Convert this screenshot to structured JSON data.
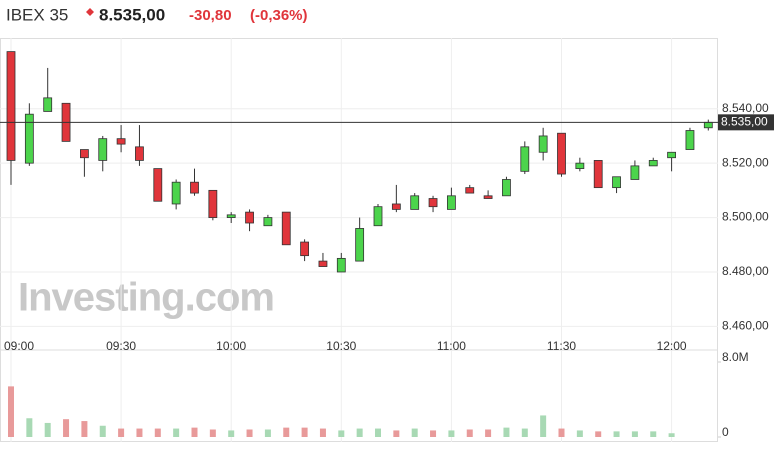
{
  "chart_data": {
    "type": "candlestick",
    "title": "IBEX 35",
    "last_price": "8.535,00",
    "change": "-30,80",
    "change_percent": "(-0,36%)",
    "watermark": "Investing.com",
    "up_color": "#4cd44c",
    "down_color": "#e0353b",
    "volume_up_color": "#a8d9b4",
    "volume_down_color": "#e89a9a",
    "grid": true,
    "categories": [
      "09:00",
      null,
      null,
      null,
      null,
      null,
      "09:30",
      null,
      null,
      null,
      null,
      null,
      "10:00",
      null,
      null,
      null,
      null,
      null,
      "10:30",
      null,
      null,
      null,
      null,
      null,
      "11:00",
      null,
      null,
      null,
      null,
      null,
      "11:30",
      null,
      null,
      null,
      null,
      null,
      "12:00",
      null,
      null
    ],
    "open": [
      8561,
      8520,
      8539,
      8542,
      8525,
      8521,
      8529,
      8526,
      8518,
      8505,
      8513,
      8510,
      8500,
      8502,
      8497,
      8502,
      8491,
      8484,
      8480,
      8484,
      8497,
      8505,
      8503,
      8507,
      8503,
      8511,
      8508,
      8508,
      8517,
      8524,
      8531,
      8518,
      8521,
      8511,
      8514,
      8519,
      8522,
      8525,
      8533
    ],
    "high": [
      8561,
      8542,
      8555,
      8542,
      8525,
      8530,
      8534,
      8534,
      8518,
      8514,
      8518,
      8510,
      8502,
      8503,
      8501,
      8502,
      8492,
      8487,
      8487,
      8500,
      8505,
      8512,
      8509,
      8508,
      8511,
      8512,
      8510,
      8515,
      8528,
      8533,
      8531,
      8522,
      8521,
      8515,
      8521,
      8522,
      8524,
      8533,
      8536
    ],
    "low": [
      8512,
      8519,
      8539,
      8528,
      8515,
      8517,
      8524,
      8519,
      8506,
      8503,
      8508,
      8499,
      8498,
      8495,
      8497,
      8490,
      8484,
      8482,
      8480,
      8484,
      8497,
      8502,
      8503,
      8502,
      8503,
      8509,
      8507,
      8508,
      8516,
      8521,
      8515,
      8517,
      8511,
      8509,
      8514,
      8519,
      8517,
      8525,
      8532
    ],
    "close": [
      8521,
      8538,
      8544,
      8528,
      8522,
      8529,
      8527,
      8521,
      8506,
      8513,
      8509,
      8500,
      8501,
      8498,
      8500,
      8490,
      8486,
      8482,
      8485,
      8496,
      8504,
      8503,
      8508,
      8504,
      8508,
      8509,
      8507,
      8514,
      8526,
      8530,
      8516,
      8520,
      8511,
      8515,
      8519,
      8521,
      8524,
      8532,
      8535
    ],
    "volume": [
      5400000,
      2000000,
      1500000,
      1900000,
      1700000,
      1200000,
      900000,
      900000,
      900000,
      900000,
      1000000,
      800000,
      700000,
      800000,
      800000,
      1000000,
      1000000,
      900000,
      700000,
      900000,
      900000,
      700000,
      900000,
      700000,
      700000,
      800000,
      800000,
      1000000,
      900000,
      2300000,
      900000,
      700000,
      600000,
      600000,
      600000,
      600000,
      400000,
      null,
      null
    ],
    "ylim": [
      8455,
      8566
    ],
    "yticks": [
      {
        "value": 8460,
        "label": "8.460,00"
      },
      {
        "value": 8480,
        "label": "8.480,00"
      },
      {
        "value": 8500,
        "label": "8.500,00"
      },
      {
        "value": 8520,
        "label": "8.520,00"
      },
      {
        "value": 8540,
        "label": "8.540,00"
      }
    ],
    "price_line": {
      "value": 8535,
      "label": "8.535,00"
    },
    "vlim": [
      0,
      8000000
    ],
    "vticks": [
      0,
      {
        "value": 8000000,
        "label": "8.0M"
      }
    ]
  }
}
